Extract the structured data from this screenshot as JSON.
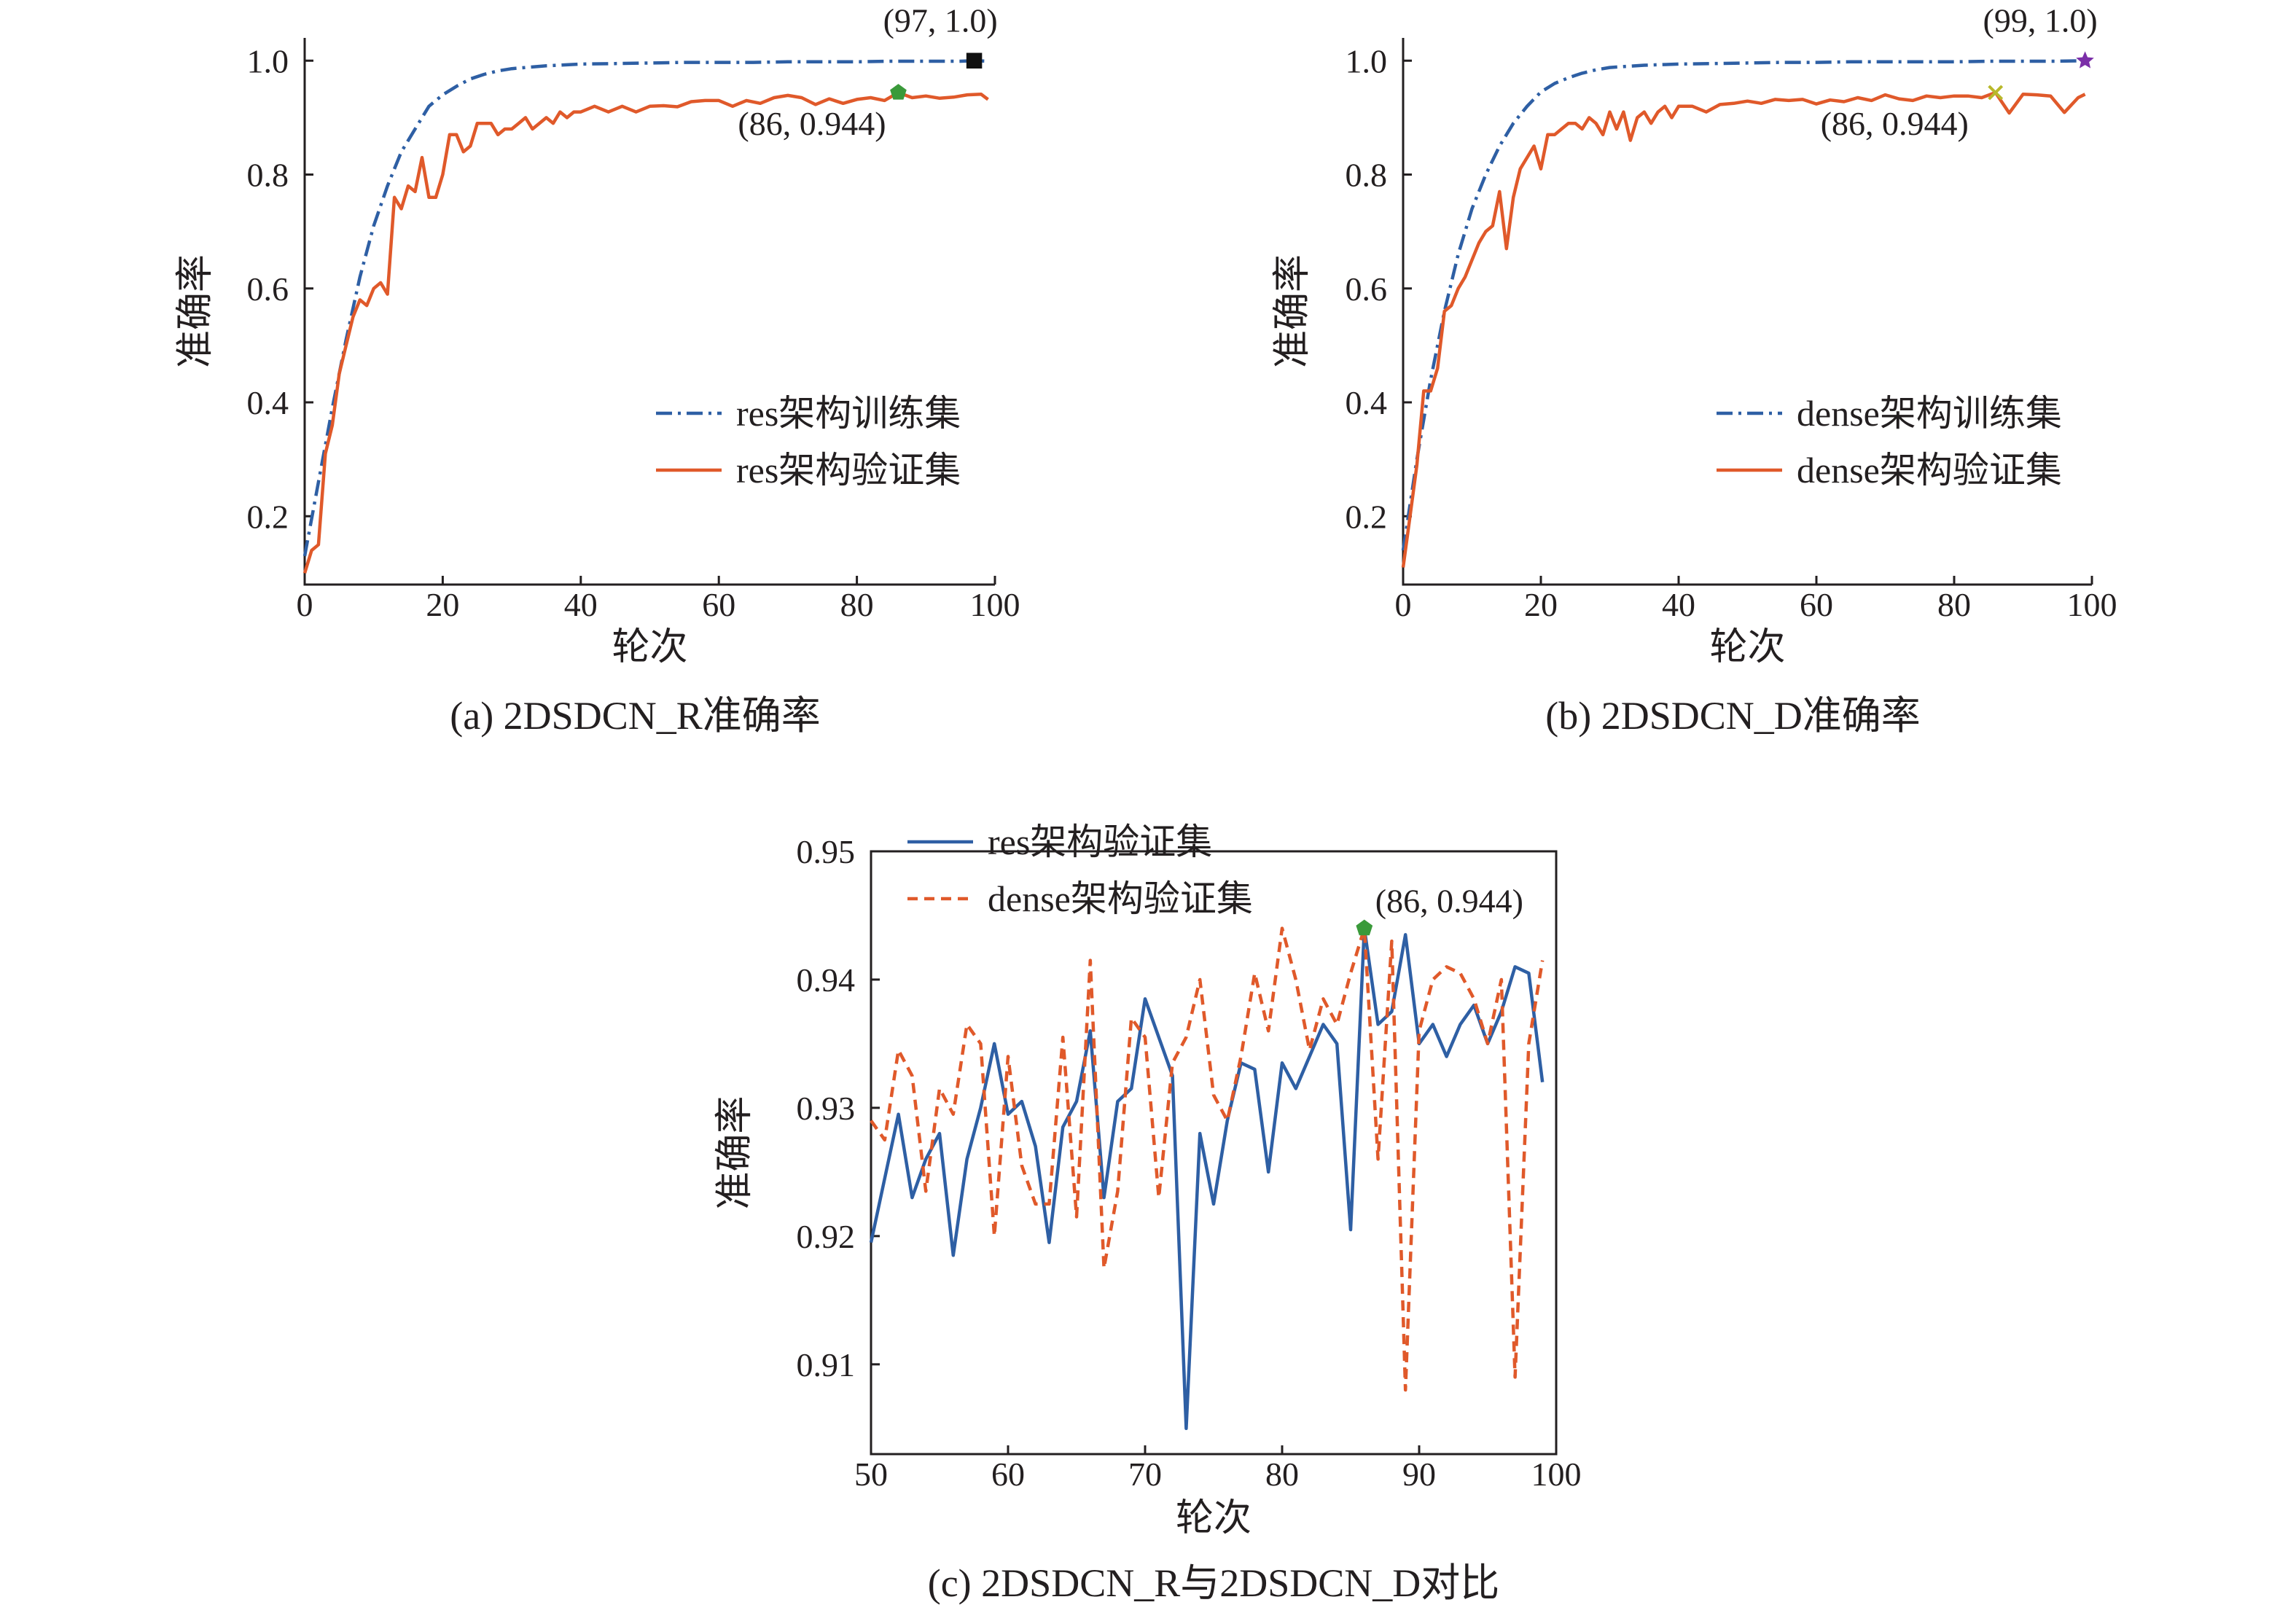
{
  "colors": {
    "blue": "#2e5fa4",
    "orange": "#e0592a",
    "green_marker": "#3a9a3a",
    "black_marker": "#111111",
    "purple_marker": "#7b2fa8",
    "yellow_marker": "#b8b82a"
  },
  "chart_data": [
    {
      "type": "line",
      "caption": "(a) 2DSDCN_R准确率",
      "xlabel": "轮次",
      "ylabel": "准确率",
      "xlim": [
        0,
        100
      ],
      "ylim": [
        0.08,
        1.04
      ],
      "xticks": [
        "0",
        "20",
        "40",
        "60",
        "80",
        "100"
      ],
      "yticks": [
        "0.2",
        "0.4",
        "0.6",
        "0.8",
        "1.0"
      ],
      "legend_placement": "center-right",
      "series": [
        {
          "name": "res架构训练集",
          "style": "dashdot",
          "color": "blue",
          "x": [
            0,
            2,
            4,
            6,
            8,
            10,
            12,
            14,
            16,
            18,
            20,
            22,
            24,
            26,
            28,
            30,
            35,
            40,
            45,
            50,
            55,
            60,
            65,
            70,
            75,
            80,
            85,
            90,
            95,
            97,
            99
          ],
          "y": [
            0.13,
            0.26,
            0.39,
            0.51,
            0.62,
            0.71,
            0.78,
            0.84,
            0.88,
            0.92,
            0.94,
            0.955,
            0.968,
            0.976,
            0.982,
            0.986,
            0.991,
            0.994,
            0.995,
            0.996,
            0.997,
            0.997,
            0.997,
            0.998,
            0.998,
            0.998,
            0.999,
            0.999,
            0.999,
            1.0,
            0.999
          ]
        },
        {
          "name": "res架构验证集",
          "style": "solid",
          "color": "orange",
          "x": [
            0,
            1,
            2,
            3,
            4,
            5,
            6,
            7,
            8,
            9,
            10,
            11,
            12,
            13,
            14,
            15,
            16,
            17,
            18,
            19,
            20,
            21,
            22,
            23,
            24,
            25,
            26,
            27,
            28,
            29,
            30,
            31,
            32,
            33,
            34,
            35,
            36,
            37,
            38,
            39,
            40,
            42,
            44,
            46,
            48,
            50,
            52,
            54,
            56,
            58,
            60,
            62,
            64,
            66,
            68,
            70,
            72,
            74,
            76,
            78,
            80,
            82,
            84,
            86,
            88,
            90,
            92,
            94,
            96,
            98,
            99
          ],
          "y": [
            0.1,
            0.14,
            0.15,
            0.31,
            0.36,
            0.45,
            0.5,
            0.55,
            0.58,
            0.57,
            0.6,
            0.61,
            0.59,
            0.76,
            0.74,
            0.78,
            0.77,
            0.83,
            0.76,
            0.76,
            0.8,
            0.87,
            0.87,
            0.84,
            0.85,
            0.89,
            0.89,
            0.89,
            0.87,
            0.88,
            0.88,
            0.89,
            0.9,
            0.88,
            0.89,
            0.9,
            0.89,
            0.91,
            0.9,
            0.91,
            0.91,
            0.92,
            0.91,
            0.92,
            0.91,
            0.92,
            0.921,
            0.919,
            0.928,
            0.93,
            0.93,
            0.92,
            0.93,
            0.925,
            0.935,
            0.939,
            0.935,
            0.923,
            0.933,
            0.925,
            0.932,
            0.935,
            0.93,
            0.944,
            0.935,
            0.938,
            0.934,
            0.936,
            0.94,
            0.941,
            0.932
          ]
        }
      ],
      "annotations": [
        {
          "text": "(97, 1.0)",
          "x": 97,
          "y": 1.0,
          "marker": "square",
          "color": "black_marker"
        },
        {
          "text": "(86, 0.944)",
          "x": 86,
          "y": 0.944,
          "marker": "pentagon",
          "color": "green_marker"
        }
      ]
    },
    {
      "type": "line",
      "caption": "(b) 2DSDCN_D准确率",
      "xlabel": "轮次",
      "ylabel": "准确率",
      "xlim": [
        0,
        100
      ],
      "ylim": [
        0.08,
        1.04
      ],
      "xticks": [
        "0",
        "20",
        "40",
        "60",
        "80",
        "100"
      ],
      "yticks": [
        "0.2",
        "0.4",
        "0.6",
        "0.8",
        "1.0"
      ],
      "legend_placement": "center-right",
      "series": [
        {
          "name": "dense架构训练集",
          "style": "dashdot",
          "color": "blue",
          "x": [
            0,
            2,
            4,
            6,
            8,
            10,
            12,
            14,
            16,
            18,
            20,
            22,
            24,
            26,
            28,
            30,
            35,
            40,
            45,
            50,
            55,
            60,
            65,
            70,
            75,
            80,
            85,
            90,
            95,
            99
          ],
          "y": [
            0.14,
            0.3,
            0.44,
            0.56,
            0.66,
            0.74,
            0.8,
            0.85,
            0.89,
            0.92,
            0.945,
            0.96,
            0.97,
            0.978,
            0.984,
            0.988,
            0.992,
            0.994,
            0.995,
            0.996,
            0.997,
            0.997,
            0.998,
            0.998,
            0.998,
            0.998,
            0.999,
            0.999,
            0.999,
            1.0
          ]
        },
        {
          "name": "dense架构验证集",
          "style": "solid",
          "color": "orange",
          "x": [
            0,
            1,
            2,
            3,
            4,
            5,
            6,
            7,
            8,
            9,
            10,
            11,
            12,
            13,
            14,
            15,
            16,
            17,
            18,
            19,
            20,
            21,
            22,
            23,
            24,
            25,
            26,
            27,
            28,
            29,
            30,
            31,
            32,
            33,
            34,
            35,
            36,
            37,
            38,
            39,
            40,
            42,
            44,
            46,
            48,
            50,
            52,
            54,
            56,
            58,
            60,
            62,
            64,
            66,
            68,
            70,
            72,
            74,
            76,
            78,
            80,
            82,
            84,
            86,
            88,
            90,
            92,
            94,
            96,
            98,
            99
          ],
          "y": [
            0.11,
            0.2,
            0.29,
            0.42,
            0.42,
            0.46,
            0.56,
            0.57,
            0.6,
            0.62,
            0.65,
            0.68,
            0.7,
            0.71,
            0.77,
            0.67,
            0.76,
            0.81,
            0.83,
            0.85,
            0.81,
            0.87,
            0.87,
            0.88,
            0.89,
            0.89,
            0.88,
            0.9,
            0.89,
            0.87,
            0.91,
            0.88,
            0.91,
            0.86,
            0.9,
            0.91,
            0.89,
            0.91,
            0.92,
            0.9,
            0.92,
            0.92,
            0.91,
            0.923,
            0.925,
            0.929,
            0.925,
            0.932,
            0.93,
            0.932,
            0.924,
            0.931,
            0.928,
            0.935,
            0.93,
            0.94,
            0.933,
            0.93,
            0.938,
            0.935,
            0.938,
            0.938,
            0.935,
            0.944,
            0.908,
            0.941,
            0.94,
            0.938,
            0.909,
            0.935,
            0.941
          ]
        }
      ],
      "annotations": [
        {
          "text": "(99, 1.0)",
          "x": 99,
          "y": 1.0,
          "marker": "star",
          "color": "purple_marker"
        },
        {
          "text": "(86, 0.944)",
          "x": 86,
          "y": 0.944,
          "marker": "x",
          "color": "yellow_marker"
        }
      ]
    },
    {
      "type": "line",
      "caption": "(c) 2DSDCN_R与2DSDCN_D对比",
      "xlabel": "轮次",
      "ylabel": "准确率",
      "xlim": [
        50,
        100
      ],
      "ylim": [
        0.903,
        0.95
      ],
      "xticks": [
        "50",
        "60",
        "70",
        "80",
        "90",
        "100"
      ],
      "yticks": [
        "0.91",
        "0.92",
        "0.93",
        "0.94",
        "0.95"
      ],
      "legend_placement": "top-left",
      "series": [
        {
          "name": "res架构验证集",
          "style": "solid",
          "color": "blue",
          "x": [
            50,
            51,
            52,
            53,
            54,
            55,
            56,
            57,
            58,
            59,
            60,
            61,
            62,
            63,
            64,
            65,
            66,
            67,
            68,
            69,
            70,
            71,
            72,
            73,
            74,
            75,
            76,
            77,
            78,
            79,
            80,
            81,
            82,
            83,
            84,
            85,
            86,
            87,
            88,
            89,
            90,
            91,
            92,
            93,
            94,
            95,
            96,
            97,
            98,
            99
          ],
          "y": [
            0.9195,
            0.9245,
            0.9295,
            0.923,
            0.926,
            0.928,
            0.9185,
            0.926,
            0.93,
            0.935,
            0.9295,
            0.9305,
            0.927,
            0.9195,
            0.9285,
            0.9305,
            0.936,
            0.923,
            0.9305,
            0.9315,
            0.9385,
            0.9355,
            0.9325,
            0.905,
            0.928,
            0.9225,
            0.929,
            0.9335,
            0.933,
            0.925,
            0.9335,
            0.9315,
            0.934,
            0.9365,
            0.935,
            0.9205,
            0.944,
            0.9365,
            0.9375,
            0.9435,
            0.935,
            0.9365,
            0.934,
            0.9365,
            0.938,
            0.935,
            0.9375,
            0.941,
            0.9405,
            0.932
          ]
        },
        {
          "name": "dense架构验证集",
          "style": "dashed",
          "color": "orange",
          "x": [
            50,
            51,
            52,
            53,
            54,
            55,
            56,
            57,
            58,
            59,
            60,
            61,
            62,
            63,
            64,
            65,
            66,
            67,
            68,
            69,
            70,
            71,
            72,
            73,
            74,
            75,
            76,
            77,
            78,
            79,
            80,
            81,
            82,
            83,
            84,
            85,
            86,
            87,
            88,
            89,
            90,
            91,
            92,
            93,
            94,
            95,
            96,
            97,
            98,
            99
          ],
          "y": [
            0.929,
            0.9275,
            0.9345,
            0.9325,
            0.9235,
            0.9315,
            0.9295,
            0.9365,
            0.935,
            0.92,
            0.934,
            0.9255,
            0.9225,
            0.9225,
            0.9355,
            0.9215,
            0.9415,
            0.9175,
            0.9235,
            0.937,
            0.9355,
            0.923,
            0.9335,
            0.9355,
            0.94,
            0.931,
            0.929,
            0.934,
            0.9405,
            0.936,
            0.944,
            0.94,
            0.9345,
            0.9385,
            0.9365,
            0.9405,
            0.944,
            0.926,
            0.943,
            0.908,
            0.936,
            0.94,
            0.941,
            0.9405,
            0.9385,
            0.935,
            0.94,
            0.909,
            0.935,
            0.9415
          ]
        }
      ],
      "annotations": [
        {
          "text": "(86, 0.944)",
          "x": 86,
          "y": 0.944,
          "marker": "pentagon",
          "color": "green_marker"
        }
      ]
    }
  ]
}
